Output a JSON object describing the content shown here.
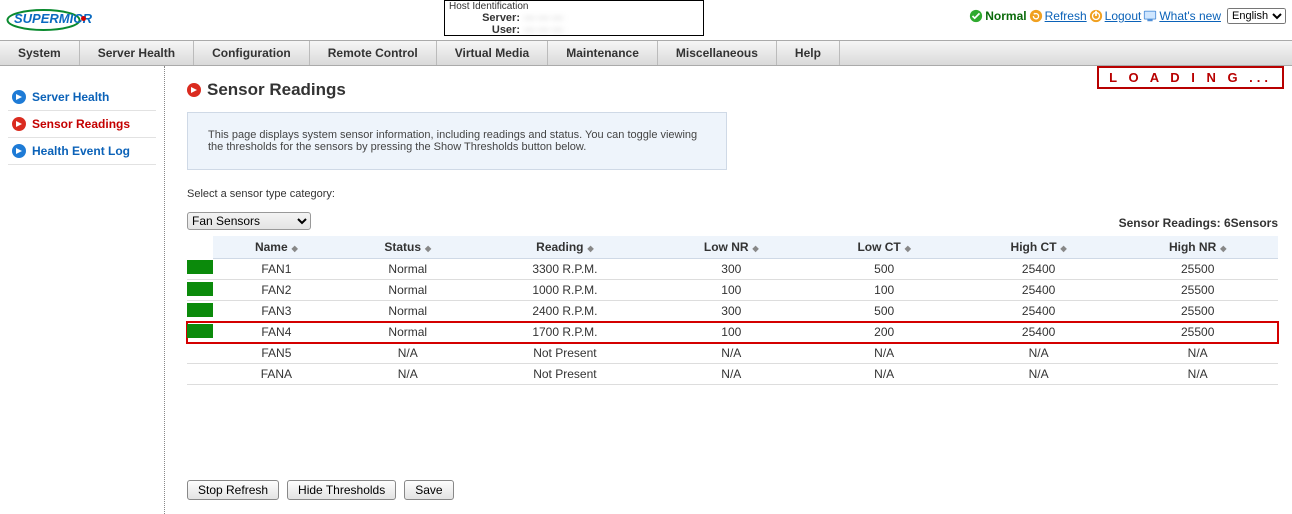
{
  "hostbox": {
    "header": "Host Identification",
    "server_label": "Server:",
    "user_label": "User:",
    "server_value": "— — —",
    "user_value": "— — —"
  },
  "top_right": {
    "normal": "Normal",
    "refresh": "Refresh",
    "logout": "Logout",
    "whats_new": "What's  new",
    "language_options": [
      "English"
    ],
    "language_selected": "English"
  },
  "menu": [
    "System",
    "Server Health",
    "Configuration",
    "Remote Control",
    "Virtual Media",
    "Maintenance",
    "Miscellaneous",
    "Help"
  ],
  "sidebar": {
    "items": [
      {
        "label": "Server Health",
        "active": false
      },
      {
        "label": "Sensor Readings",
        "active": true
      },
      {
        "label": "Health Event Log",
        "active": false
      }
    ]
  },
  "page": {
    "title": "Sensor Readings",
    "info": "This page displays system sensor information, including readings and status. You can toggle viewing the thresholds for the sensors by pressing the Show Thresholds button below.",
    "category_label": "Select a sensor type category:",
    "sensor_count_text": "Sensor Readings: 6Sensors",
    "loading": "L O A D I N G ..."
  },
  "selector": {
    "options": [
      "Fan Sensors"
    ],
    "selected": "Fan Sensors"
  },
  "table": {
    "columns": [
      "Name",
      "Status",
      "Reading",
      "Low NR",
      "Low CT",
      "High CT",
      "High NR"
    ],
    "rows": [
      {
        "status_color": "#0b8a0b",
        "name": "FAN1",
        "status": "Normal",
        "reading": "3300 R.P.M.",
        "low_nr": "300",
        "low_ct": "500",
        "high_ct": "25400",
        "high_nr": "25500",
        "highlight": false
      },
      {
        "status_color": "#0b8a0b",
        "name": "FAN2",
        "status": "Normal",
        "reading": "1000 R.P.M.",
        "low_nr": "100",
        "low_ct": "100",
        "high_ct": "25400",
        "high_nr": "25500",
        "highlight": false
      },
      {
        "status_color": "#0b8a0b",
        "name": "FAN3",
        "status": "Normal",
        "reading": "2400 R.P.M.",
        "low_nr": "300",
        "low_ct": "500",
        "high_ct": "25400",
        "high_nr": "25500",
        "highlight": false
      },
      {
        "status_color": "#0b8a0b",
        "name": "FAN4",
        "status": "Normal",
        "reading": "1700 R.P.M.",
        "low_nr": "100",
        "low_ct": "200",
        "high_ct": "25400",
        "high_nr": "25500",
        "highlight": true
      },
      {
        "status_color": "",
        "name": "FAN5",
        "status": "N/A",
        "reading": "Not Present",
        "low_nr": "N/A",
        "low_ct": "N/A",
        "high_ct": "N/A",
        "high_nr": "N/A",
        "highlight": false
      },
      {
        "status_color": "",
        "name": "FANA",
        "status": "N/A",
        "reading": "Not Present",
        "low_nr": "N/A",
        "low_ct": "N/A",
        "high_ct": "N/A",
        "high_nr": "N/A",
        "highlight": false
      }
    ]
  },
  "buttons": {
    "stop_refresh": "Stop Refresh",
    "hide_thresholds": "Hide Thresholds",
    "save": "Save"
  },
  "colors": {
    "accent_blue": "#0b62b8",
    "accent_red": "#d40000",
    "status_green": "#0b8a0b",
    "panel_bg": "#eef4fb",
    "panel_border": "#cfd9e6"
  }
}
